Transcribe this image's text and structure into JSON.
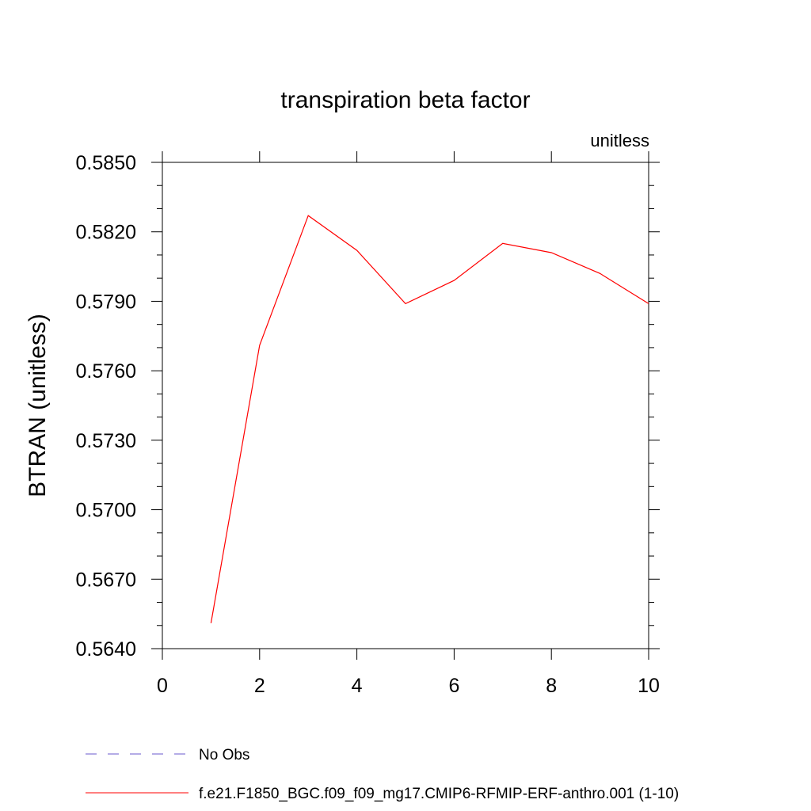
{
  "chart_data": {
    "type": "line",
    "title": "transpiration beta factor",
    "units_label": "unitless",
    "ylabel": "BTRAN  (unitless)",
    "xlabel": "",
    "xlim": [
      0,
      10
    ],
    "ylim": [
      0.564,
      0.585
    ],
    "x_ticks": [
      0,
      2,
      4,
      6,
      8,
      10
    ],
    "x_tick_labels": [
      "0",
      "2",
      "4",
      "6",
      "8",
      "10"
    ],
    "y_ticks": [
      0.564,
      0.567,
      0.57,
      0.573,
      0.576,
      0.579,
      0.582,
      0.585
    ],
    "y_tick_labels": [
      "0.5640",
      "0.5670",
      "0.5700",
      "0.5730",
      "0.5760",
      "0.5790",
      "0.5820",
      "0.5850"
    ],
    "series": [
      {
        "name": "f.e21.F1850_BGC.f09_f09_mg17.CMIP6-RFMIP-ERF-anthro.001 (1-10)",
        "color": "#ff0000",
        "style": "solid",
        "x": [
          1,
          2,
          3,
          4,
          5,
          6,
          7,
          8,
          9,
          10
        ],
        "values": [
          0.5651,
          0.5771,
          0.5827,
          0.5812,
          0.5789,
          0.5799,
          0.5815,
          0.5811,
          0.5802,
          0.5789
        ]
      }
    ],
    "legend": {
      "placement": "bottom",
      "entries": [
        {
          "label": "No Obs",
          "color": "#6a5acd",
          "style": "dashed"
        },
        {
          "label": "f.e21.F1850_BGC.f09_f09_mg17.CMIP6-RFMIP-ERF-anthro.001 (1-10)",
          "color": "#ff0000",
          "style": "solid"
        }
      ]
    },
    "grid": false
  }
}
